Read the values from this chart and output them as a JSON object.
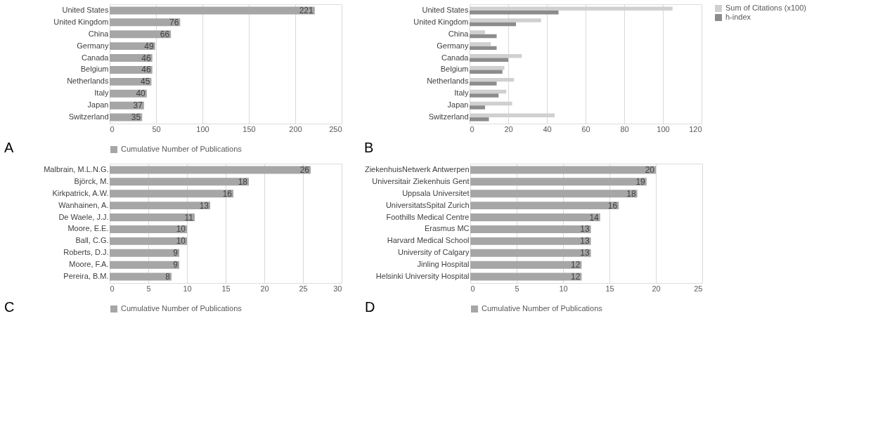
{
  "chart_data": [
    {
      "type": "bar",
      "orientation": "horizontal",
      "categories": [
        "United States",
        "United Kingdom",
        "China",
        "Germany",
        "Canada",
        "Belgium",
        "Netherlands",
        "Italy",
        "Japan",
        "Switzerland"
      ],
      "series": [
        {
          "name": "Cumulative Number of Publications",
          "color": "#a6a6a6",
          "values": [
            221,
            76,
            66,
            49,
            46,
            46,
            45,
            40,
            37,
            35
          ]
        }
      ],
      "xlim": [
        0,
        250
      ],
      "xticks": [
        0,
        50,
        100,
        150,
        200,
        250
      ],
      "grid": "x",
      "legend": "bottom",
      "data_labels": true,
      "annotations": [
        "A"
      ]
    },
    {
      "type": "bar",
      "orientation": "horizontal",
      "categories": [
        "United States",
        "United Kingdom",
        "China",
        "Germany",
        "Canada",
        "Belgium",
        "Netherlands",
        "Italy",
        "Japan",
        "Switzerland"
      ],
      "series": [
        {
          "name": "Sum of Citations (x100)",
          "color": "#d0d0d0",
          "values": [
            105,
            37,
            8,
            11,
            27,
            18,
            23,
            19,
            22,
            44
          ]
        },
        {
          "name": "h-index",
          "color": "#8c8c8c",
          "values": [
            46,
            24,
            14,
            14,
            20,
            17,
            14,
            15,
            8,
            10
          ]
        }
      ],
      "xlim": [
        0,
        120
      ],
      "xticks": [
        0,
        20,
        40,
        60,
        80,
        100,
        120
      ],
      "grid": "x",
      "legend": "right",
      "annotations": [
        "B"
      ]
    },
    {
      "type": "bar",
      "orientation": "horizontal",
      "categories": [
        "Malbrain, M.L.N.G.",
        "Björck, M.",
        "Kirkpatrick, A.W.",
        "Wanhainen, A.",
        "De Waele, J.J.",
        "Moore, E.E.",
        "Ball, C.G.",
        "Roberts, D.J.",
        "Moore, F.A.",
        "Pereira, B.M."
      ],
      "series": [
        {
          "name": "Cumulative Number of Publications",
          "color": "#a6a6a6",
          "values": [
            26,
            18,
            16,
            13,
            11,
            10,
            10,
            9,
            9,
            8
          ]
        }
      ],
      "xlim": [
        0,
        30
      ],
      "xticks": [
        0,
        5,
        10,
        15,
        20,
        25,
        30
      ],
      "grid": "x",
      "legend": "bottom",
      "data_labels": true,
      "annotations": [
        "C"
      ]
    },
    {
      "type": "bar",
      "orientation": "horizontal",
      "categories": [
        "ZiekenhuisNetwerk Antwerpen",
        "Universitair Ziekenhuis Gent",
        "Uppsala Universitet",
        "UniversitatsSpital Zurich",
        "Foothills Medical Centre",
        "Erasmus MC",
        "Harvard Medical School",
        "University of Calgary",
        "Jinling Hospital",
        "Helsinki University Hospital"
      ],
      "series": [
        {
          "name": "Cumulative Number of Publications",
          "color": "#a6a6a6",
          "values": [
            20,
            19,
            18,
            16,
            14,
            13,
            13,
            13,
            12,
            12
          ]
        }
      ],
      "xlim": [
        0,
        25
      ],
      "xticks": [
        0,
        5,
        10,
        15,
        20,
        25
      ],
      "grid": "x",
      "legend": "bottom",
      "data_labels": true,
      "annotations": [
        "D"
      ]
    }
  ]
}
